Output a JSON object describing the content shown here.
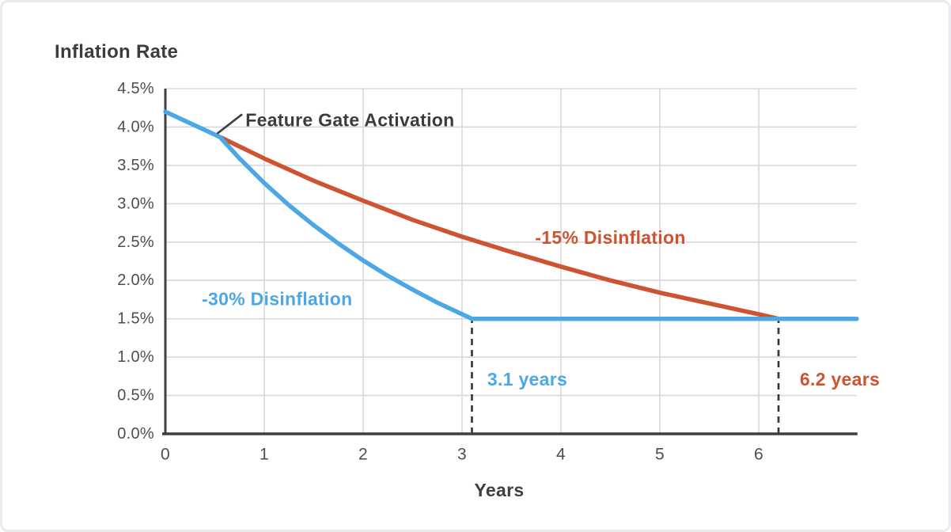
{
  "chart_data": {
    "type": "line",
    "title": "Inflation Rate",
    "xlabel": "Years",
    "ylabel": "Inflation Rate",
    "xlim": [
      0,
      6.99
    ],
    "ylim": [
      0,
      4.5
    ],
    "grid": true,
    "x_ticks": [
      0,
      1,
      2,
      3,
      4,
      5,
      6
    ],
    "y_ticks": [
      {
        "value": 0.0,
        "label": "0.0%"
      },
      {
        "value": 0.5,
        "label": "0.5%"
      },
      {
        "value": 1.0,
        "label": "1.0%"
      },
      {
        "value": 1.5,
        "label": "1.5%"
      },
      {
        "value": 2.0,
        "label": "2.0%"
      },
      {
        "value": 2.5,
        "label": "2.5%"
      },
      {
        "value": 3.0,
        "label": "3.0%"
      },
      {
        "value": 3.5,
        "label": "3.5%"
      },
      {
        "value": 4.0,
        "label": "4.0%"
      },
      {
        "value": 4.5,
        "label": "4.5%"
      }
    ],
    "floor_value": 1.5,
    "series": [
      {
        "id": "disinflation-15",
        "name": "-15% Disinflation",
        "color": "#CE5330",
        "points": [
          [
            0.55,
            3.87
          ],
          [
            1,
            3.59
          ],
          [
            1.5,
            3.3
          ],
          [
            2,
            3.04
          ],
          [
            2.5,
            2.79
          ],
          [
            3,
            2.57
          ],
          [
            3.5,
            2.37
          ],
          [
            4,
            2.18
          ],
          [
            4.5,
            2.0
          ],
          [
            5,
            1.84
          ],
          [
            5.5,
            1.7
          ],
          [
            6,
            1.56
          ],
          [
            6.2,
            1.5
          ],
          [
            6.99,
            1.5
          ]
        ]
      },
      {
        "id": "disinflation-30",
        "name": "-30% Disinflation",
        "color": "#4CA7E6",
        "points": [
          [
            0,
            4.2
          ],
          [
            0.55,
            3.87
          ],
          [
            0.75,
            3.59
          ],
          [
            1,
            3.27
          ],
          [
            1.25,
            2.98
          ],
          [
            1.5,
            2.72
          ],
          [
            1.75,
            2.48
          ],
          [
            2,
            2.26
          ],
          [
            2.25,
            2.06
          ],
          [
            2.5,
            1.88
          ],
          [
            2.75,
            1.71
          ],
          [
            3,
            1.56
          ],
          [
            3.1,
            1.5
          ],
          [
            6.99,
            1.5
          ]
        ]
      }
    ],
    "annotations": [
      {
        "id": "feature-gate-annotation",
        "text": "Feature Gate Activation",
        "x": 0.81,
        "y": 4.09,
        "anchor": "start",
        "color": "#3c3c3c",
        "size": 23,
        "pointer": {
          "x1": 0.53,
          "y1": 3.92,
          "x2": 0.77,
          "y2": 4.16
        }
      },
      {
        "id": "series-label-15",
        "text": "-15% Disinflation",
        "x": 4.5,
        "y": 2.56,
        "anchor": "middle",
        "color": "#CE5330",
        "size": 23
      },
      {
        "id": "series-label-30",
        "text": "-30% Disinflation",
        "x": 1.13,
        "y": 1.76,
        "anchor": "middle",
        "color": "#4CA7E6",
        "size": 23
      },
      {
        "id": "crossover-label-3-1-years",
        "text": "3.1 years",
        "x": 3.66,
        "y": 0.71,
        "anchor": "middle",
        "color": "#4CA7E6",
        "size": 23
      },
      {
        "id": "crossover-label-6-2-years",
        "text": "6.2 years",
        "x": 6.82,
        "y": 0.71,
        "anchor": "middle",
        "color": "#CE5330",
        "size": 23
      }
    ],
    "reference_lines": [
      {
        "x": 3.1,
        "y_from": 0,
        "y_to": 1.5,
        "style": "dashed",
        "color": "#333333"
      },
      {
        "x": 6.2,
        "y_from": 0,
        "y_to": 1.5,
        "style": "dashed",
        "color": "#333333"
      }
    ],
    "palette": {
      "grid": "#d8d8d8",
      "axis": "#3f3f3f",
      "tick_text": "#4e4e4e"
    }
  }
}
